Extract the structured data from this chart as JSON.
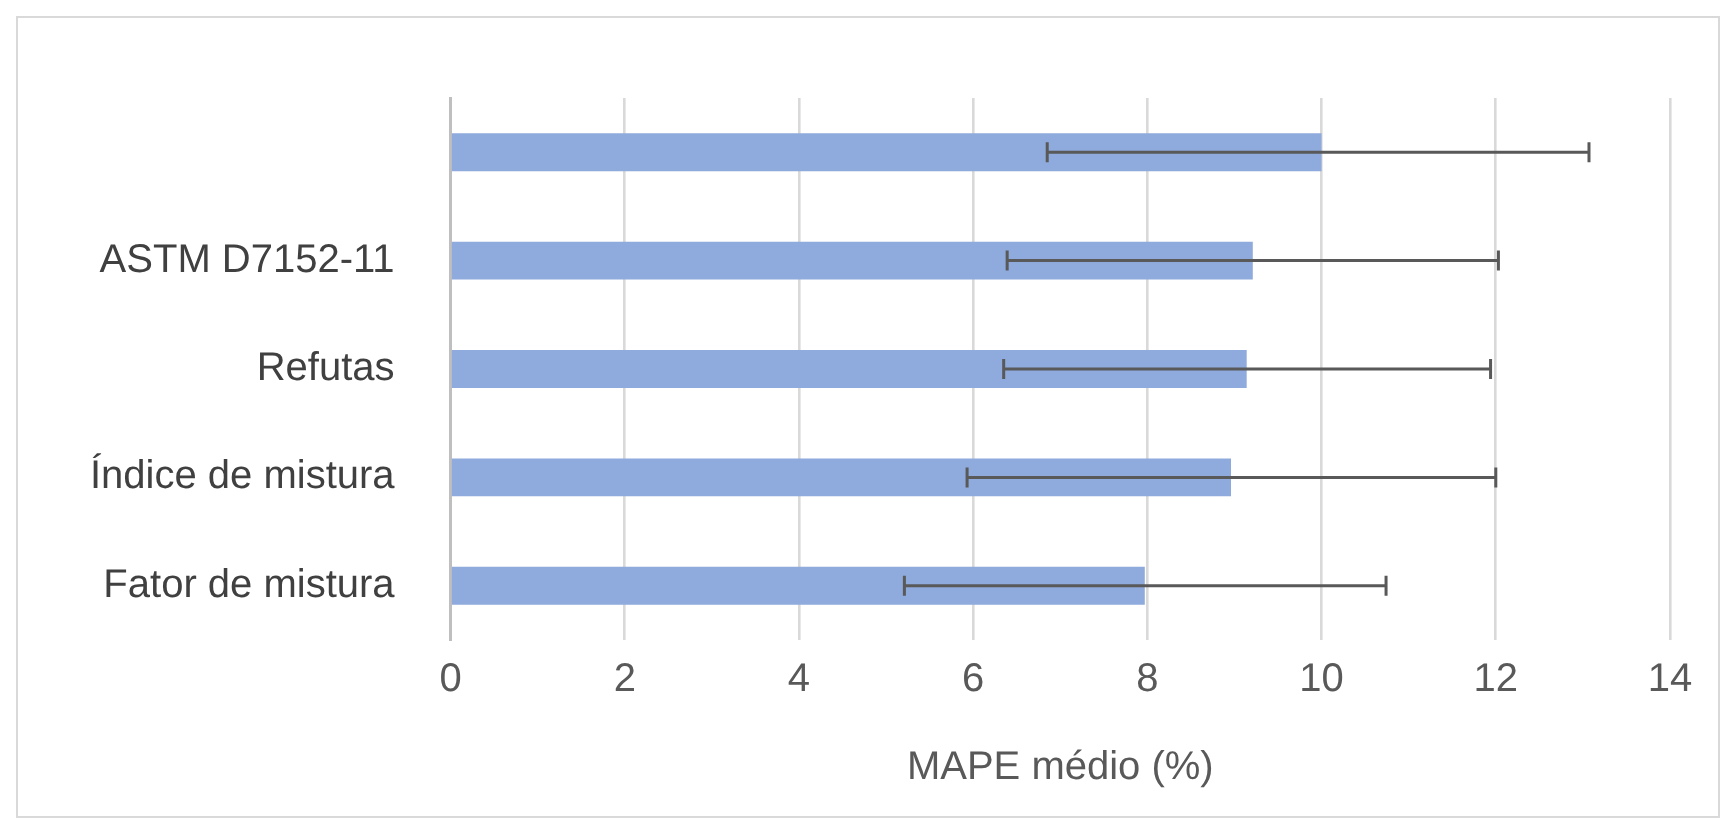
{
  "chart_data": {
    "type": "bar",
    "orientation": "horizontal",
    "xlabel": "MAPE médio (%)",
    "categories": [
      null,
      "ASTM D7152-11",
      "Refutas",
      "Índice de mistura",
      "Fator de mistura"
    ],
    "values": [
      10.0,
      9.21,
      9.14,
      8.96,
      7.97
    ],
    "errors": [
      [
        6.85,
        13.07
      ],
      [
        6.39,
        12.03
      ],
      [
        6.35,
        11.94
      ],
      [
        5.93,
        12.0
      ],
      [
        5.21,
        10.74
      ]
    ],
    "color": "#8faadc",
    "xlim": [
      0,
      14
    ],
    "xticks": [
      0,
      2,
      4,
      6,
      8,
      10,
      12,
      14
    ],
    "grid": "x",
    "legend": false
  }
}
